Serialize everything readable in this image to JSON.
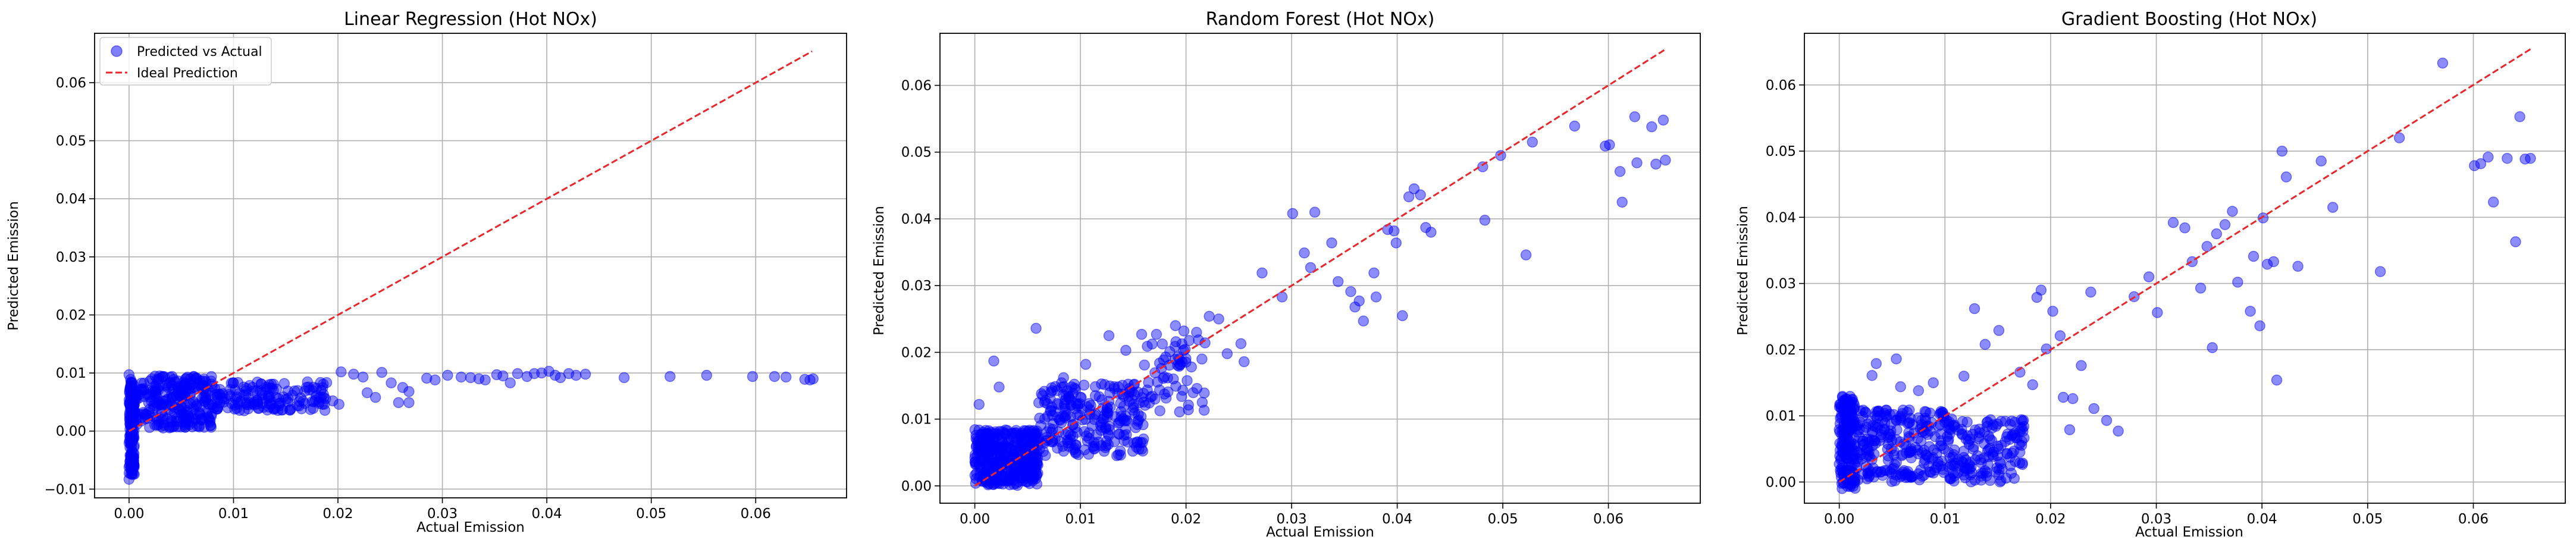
{
  "chart_data": [
    {
      "type": "scatter",
      "title": "Linear Regression (Hot NOx)",
      "xlabel": "Actual Emission",
      "ylabel": "Predicted Emission",
      "xlim": [
        -0.0033,
        0.0687
      ],
      "ylim": [
        -0.0115,
        0.0685
      ],
      "xticks": [
        0.0,
        0.01,
        0.02,
        0.03,
        0.04,
        0.05,
        0.06
      ],
      "xtick_labels": [
        "0.00",
        "0.01",
        "0.02",
        "0.03",
        "0.04",
        "0.05",
        "0.06"
      ],
      "yticks": [
        -0.01,
        0.0,
        0.01,
        0.02,
        0.03,
        0.04,
        0.05,
        0.06
      ],
      "ytick_labels": [
        "−0.01",
        "0.00",
        "0.01",
        "0.02",
        "0.03",
        "0.04",
        "0.05",
        "0.06"
      ],
      "grid": true,
      "legend_position": "top-left",
      "legend": [
        {
          "label": "Predicted vs Actual",
          "kind": "marker",
          "color": "#0000ff"
        },
        {
          "label": "Ideal Prediction",
          "kind": "dashed-line",
          "color": "#e8262c"
        }
      ],
      "ideal_line": {
        "x": [
          0.0,
          0.0654
        ],
        "y": [
          0.0,
          0.0654
        ]
      },
      "series": [
        {
          "name": "Predicted vs Actual",
          "color": "#0000ff",
          "dense_clusters": [
            {
              "x_range": [
                0.0,
                0.0005
              ],
              "y_range": [
                -0.0075,
                0.009
              ],
              "count": 170
            },
            {
              "x_range": [
                0.0005,
                0.008
              ],
              "y_range": [
                0.0005,
                0.0095
              ],
              "count": 260
            },
            {
              "x_range": [
                0.008,
                0.019
              ],
              "y_range": [
                0.0035,
                0.0085
              ],
              "count": 150
            }
          ],
          "points": [
            [
              0.0,
              -0.0083
            ],
            [
              0.0,
              -0.0062
            ],
            [
              0.0002,
              -0.0048
            ],
            [
              0.0,
              0.0097
            ],
            [
              0.0203,
              0.0102
            ],
            [
              0.0215,
              0.0098
            ],
            [
              0.0224,
              0.0093
            ],
            [
              0.0242,
              0.0101
            ],
            [
              0.0195,
              0.0052
            ],
            [
              0.0201,
              0.0046
            ],
            [
              0.0228,
              0.0066
            ],
            [
              0.0236,
              0.0058
            ],
            [
              0.0251,
              0.0083
            ],
            [
              0.0262,
              0.0075
            ],
            [
              0.0268,
              0.0068
            ],
            [
              0.0258,
              0.0049
            ],
            [
              0.0268,
              0.0049
            ],
            [
              0.0285,
              0.0091
            ],
            [
              0.0293,
              0.0088
            ],
            [
              0.0305,
              0.0096
            ],
            [
              0.0318,
              0.0093
            ],
            [
              0.0327,
              0.0092
            ],
            [
              0.0335,
              0.009
            ],
            [
              0.0341,
              0.0088
            ],
            [
              0.0352,
              0.0097
            ],
            [
              0.0358,
              0.0095
            ],
            [
              0.0365,
              0.0083
            ],
            [
              0.0372,
              0.0099
            ],
            [
              0.0381,
              0.0094
            ],
            [
              0.0388,
              0.0099
            ],
            [
              0.0395,
              0.01
            ],
            [
              0.0402,
              0.0103
            ],
            [
              0.0408,
              0.0096
            ],
            [
              0.0413,
              0.0092
            ],
            [
              0.0421,
              0.0099
            ],
            [
              0.0428,
              0.0096
            ],
            [
              0.0437,
              0.0098
            ],
            [
              0.0474,
              0.0092
            ],
            [
              0.0518,
              0.0094
            ],
            [
              0.0553,
              0.0096
            ],
            [
              0.0597,
              0.0094
            ],
            [
              0.0618,
              0.0094
            ],
            [
              0.0629,
              0.0093
            ],
            [
              0.0647,
              0.0089
            ],
            [
              0.0652,
              0.0088
            ],
            [
              0.0655,
              0.009
            ]
          ]
        }
      ]
    },
    {
      "type": "scatter",
      "title": "Random Forest (Hot NOx)",
      "xlabel": "Actual Emission",
      "ylabel": "Predicted Emission",
      "xlim": [
        -0.0033,
        0.0687
      ],
      "ylim": [
        -0.0026,
        0.0678
      ],
      "xticks": [
        0.0,
        0.01,
        0.02,
        0.03,
        0.04,
        0.05,
        0.06
      ],
      "xtick_labels": [
        "0.00",
        "0.01",
        "0.02",
        "0.03",
        "0.04",
        "0.05",
        "0.06"
      ],
      "yticks": [
        0.0,
        0.01,
        0.02,
        0.03,
        0.04,
        0.05,
        0.06
      ],
      "ytick_labels": [
        "0.00",
        "0.01",
        "0.02",
        "0.03",
        "0.04",
        "0.05",
        "0.06"
      ],
      "grid": true,
      "ideal_line": {
        "x": [
          0.0,
          0.0654
        ],
        "y": [
          0.0,
          0.0654
        ]
      },
      "series": [
        {
          "name": "Predicted vs Actual",
          "color": "#0000ff",
          "dense_clusters": [
            {
              "x_range": [
                0.0,
                0.006
              ],
              "y_range": [
                0.0,
                0.0085
              ],
              "count": 380
            },
            {
              "x_range": [
                0.006,
                0.016
              ],
              "y_range": [
                0.0045,
                0.0155
              ],
              "count": 240
            },
            {
              "x_range": [
                0.016,
                0.022
              ],
              "y_range": [
                0.011,
                0.022
              ],
              "count": 60
            }
          ],
          "points": [
            [
              0.0018,
              0.0187
            ],
            [
              0.0058,
              0.0236
            ],
            [
              0.0004,
              0.0122
            ],
            [
              0.0023,
              0.0148
            ],
            [
              0.0084,
              0.0162
            ],
            [
              0.0105,
              0.0182
            ],
            [
              0.0127,
              0.0225
            ],
            [
              0.0143,
              0.0203
            ],
            [
              0.0158,
              0.0227
            ],
            [
              0.0172,
              0.0227
            ],
            [
              0.019,
              0.024
            ],
            [
              0.0198,
              0.0232
            ],
            [
              0.021,
              0.023
            ],
            [
              0.0222,
              0.0254
            ],
            [
              0.0231,
              0.025
            ],
            [
              0.0239,
              0.0198
            ],
            [
              0.0252,
              0.0213
            ],
            [
              0.0255,
              0.0186
            ],
            [
              0.0272,
              0.0319
            ],
            [
              0.0291,
              0.0283
            ],
            [
              0.0301,
              0.0408
            ],
            [
              0.0312,
              0.0349
            ],
            [
              0.0318,
              0.0327
            ],
            [
              0.0322,
              0.041
            ],
            [
              0.0338,
              0.0364
            ],
            [
              0.0344,
              0.0306
            ],
            [
              0.0356,
              0.0291
            ],
            [
              0.036,
              0.0268
            ],
            [
              0.0364,
              0.0277
            ],
            [
              0.0368,
              0.0247
            ],
            [
              0.0378,
              0.0319
            ],
            [
              0.038,
              0.0283
            ],
            [
              0.0391,
              0.0384
            ],
            [
              0.0397,
              0.0382
            ],
            [
              0.0399,
              0.0364
            ],
            [
              0.0405,
              0.0255
            ],
            [
              0.0411,
              0.0433
            ],
            [
              0.0416,
              0.0445
            ],
            [
              0.0422,
              0.0436
            ],
            [
              0.0427,
              0.0387
            ],
            [
              0.0432,
              0.038
            ],
            [
              0.0481,
              0.0478
            ],
            [
              0.0483,
              0.0398
            ],
            [
              0.0498,
              0.0495
            ],
            [
              0.0522,
              0.0346
            ],
            [
              0.0528,
              0.0515
            ],
            [
              0.0568,
              0.0539
            ],
            [
              0.0597,
              0.0509
            ],
            [
              0.0601,
              0.0511
            ],
            [
              0.0611,
              0.0471
            ],
            [
              0.0613,
              0.0425
            ],
            [
              0.0625,
              0.0553
            ],
            [
              0.0627,
              0.0484
            ],
            [
              0.0641,
              0.0538
            ],
            [
              0.0645,
              0.0482
            ],
            [
              0.0652,
              0.0548
            ],
            [
              0.0654,
              0.0488
            ]
          ]
        }
      ]
    },
    {
      "type": "scatter",
      "title": "Gradient Boosting (Hot NOx)",
      "xlabel": "Actual Emission",
      "ylabel": "Predicted Emission",
      "xlim": [
        -0.0033,
        0.0687
      ],
      "ylim": [
        -0.0032,
        0.0678
      ],
      "xticks": [
        0.0,
        0.01,
        0.02,
        0.03,
        0.04,
        0.05,
        0.06
      ],
      "xtick_labels": [
        "0.00",
        "0.01",
        "0.02",
        "0.03",
        "0.04",
        "0.05",
        "0.06"
      ],
      "yticks": [
        0.0,
        0.01,
        0.02,
        0.03,
        0.04,
        0.05,
        0.06
      ],
      "ytick_labels": [
        "0.00",
        "0.01",
        "0.02",
        "0.03",
        "0.04",
        "0.05",
        "0.06"
      ],
      "grid": true,
      "ideal_line": {
        "x": [
          0.0,
          0.0654
        ],
        "y": [
          0.0,
          0.0654
        ]
      },
      "series": [
        {
          "name": "Predicted vs Actual",
          "color": "#0000ff",
          "dense_clusters": [
            {
              "x_range": [
                0.0,
                0.0015
              ],
              "y_range": [
                -0.001,
                0.013
              ],
              "count": 180
            },
            {
              "x_range": [
                0.0015,
                0.011
              ],
              "y_range": [
                0.0,
                0.011
              ],
              "count": 260
            },
            {
              "x_range": [
                0.011,
                0.0175
              ],
              "y_range": [
                0.0,
                0.0095
              ],
              "count": 130
            }
          ],
          "points": [
            [
              0.0035,
              0.0179
            ],
            [
              0.0054,
              0.0186
            ],
            [
              0.0058,
              0.0144
            ],
            [
              0.0075,
              0.0138
            ],
            [
              0.0031,
              0.0161
            ],
            [
              0.0089,
              0.015
            ],
            [
              0.0118,
              0.016
            ],
            [
              0.0128,
              0.0262
            ],
            [
              0.0138,
              0.0208
            ],
            [
              0.0151,
              0.0229
            ],
            [
              0.0171,
              0.0166
            ],
            [
              0.0183,
              0.0147
            ],
            [
              0.0187,
              0.0279
            ],
            [
              0.0191,
              0.029
            ],
            [
              0.0196,
              0.0201
            ],
            [
              0.0202,
              0.0258
            ],
            [
              0.0209,
              0.0221
            ],
            [
              0.0212,
              0.0128
            ],
            [
              0.0218,
              0.0079
            ],
            [
              0.0221,
              0.0126
            ],
            [
              0.0229,
              0.0176
            ],
            [
              0.0238,
              0.0287
            ],
            [
              0.0241,
              0.0111
            ],
            [
              0.0253,
              0.0093
            ],
            [
              0.0264,
              0.0077
            ],
            [
              0.0279,
              0.028
            ],
            [
              0.0293,
              0.031
            ],
            [
              0.0301,
              0.0256
            ],
            [
              0.0316,
              0.0392
            ],
            [
              0.0327,
              0.0384
            ],
            [
              0.0334,
              0.0333
            ],
            [
              0.0342,
              0.0293
            ],
            [
              0.0348,
              0.0356
            ],
            [
              0.0353,
              0.0203
            ],
            [
              0.0357,
              0.0375
            ],
            [
              0.0365,
              0.0389
            ],
            [
              0.0372,
              0.0409
            ],
            [
              0.0377,
              0.0302
            ],
            [
              0.0389,
              0.0258
            ],
            [
              0.0392,
              0.0341
            ],
            [
              0.0398,
              0.0236
            ],
            [
              0.0401,
              0.0399
            ],
            [
              0.0405,
              0.0329
            ],
            [
              0.0411,
              0.0333
            ],
            [
              0.0414,
              0.0154
            ],
            [
              0.0419,
              0.05
            ],
            [
              0.0423,
              0.0461
            ],
            [
              0.0434,
              0.0326
            ],
            [
              0.0456,
              0.0485
            ],
            [
              0.0467,
              0.0415
            ],
            [
              0.0512,
              0.0318
            ],
            [
              0.053,
              0.052
            ],
            [
              0.0571,
              0.0633
            ],
            [
              0.0601,
              0.0478
            ],
            [
              0.0607,
              0.0481
            ],
            [
              0.0614,
              0.0491
            ],
            [
              0.0619,
              0.0423
            ],
            [
              0.0632,
              0.0489
            ],
            [
              0.064,
              0.0363
            ],
            [
              0.0644,
              0.0552
            ],
            [
              0.0649,
              0.0488
            ],
            [
              0.0654,
              0.0489
            ]
          ]
        }
      ]
    }
  ]
}
